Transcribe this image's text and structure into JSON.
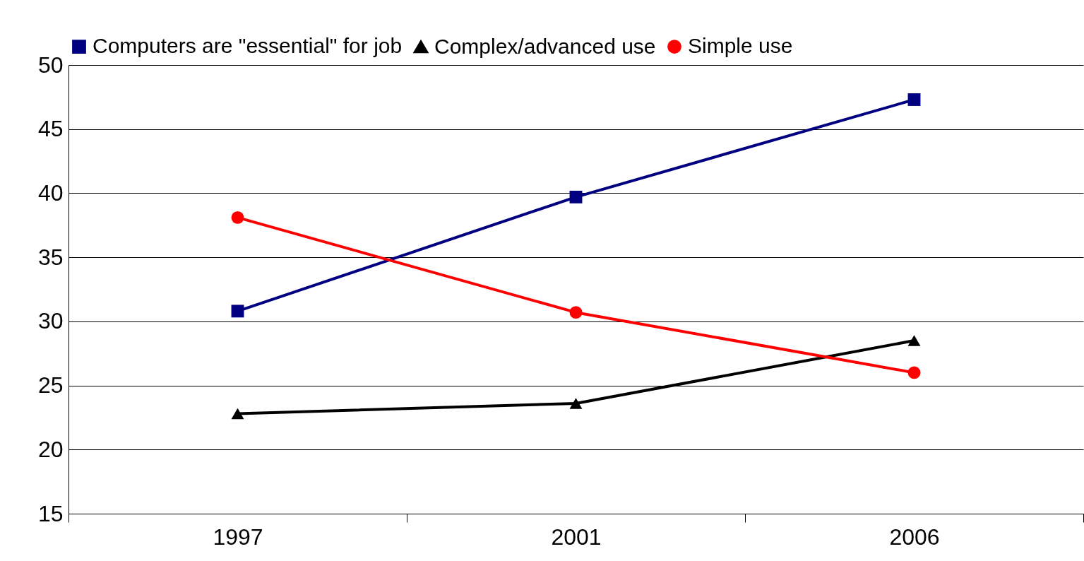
{
  "chart_data": {
    "type": "line",
    "categories": [
      "1997",
      "2001",
      "2006"
    ],
    "series": [
      {
        "name": "Computers are \"essential\" for job",
        "color": "#000080",
        "marker": "square",
        "values": [
          30.8,
          39.7,
          47.3
        ]
      },
      {
        "name": "Complex/advanced use",
        "color": "#000000",
        "marker": "triangle",
        "values": [
          22.8,
          23.6,
          28.5
        ]
      },
      {
        "name": "Simple use",
        "color": "#ff0000",
        "marker": "circle",
        "values": [
          38.1,
          30.7,
          26.0
        ]
      }
    ],
    "ylim": [
      15,
      50
    ],
    "yticks": [
      15,
      20,
      25,
      30,
      35,
      40,
      45,
      50
    ],
    "grid": "y",
    "legend": "top",
    "line_style": "solid"
  }
}
